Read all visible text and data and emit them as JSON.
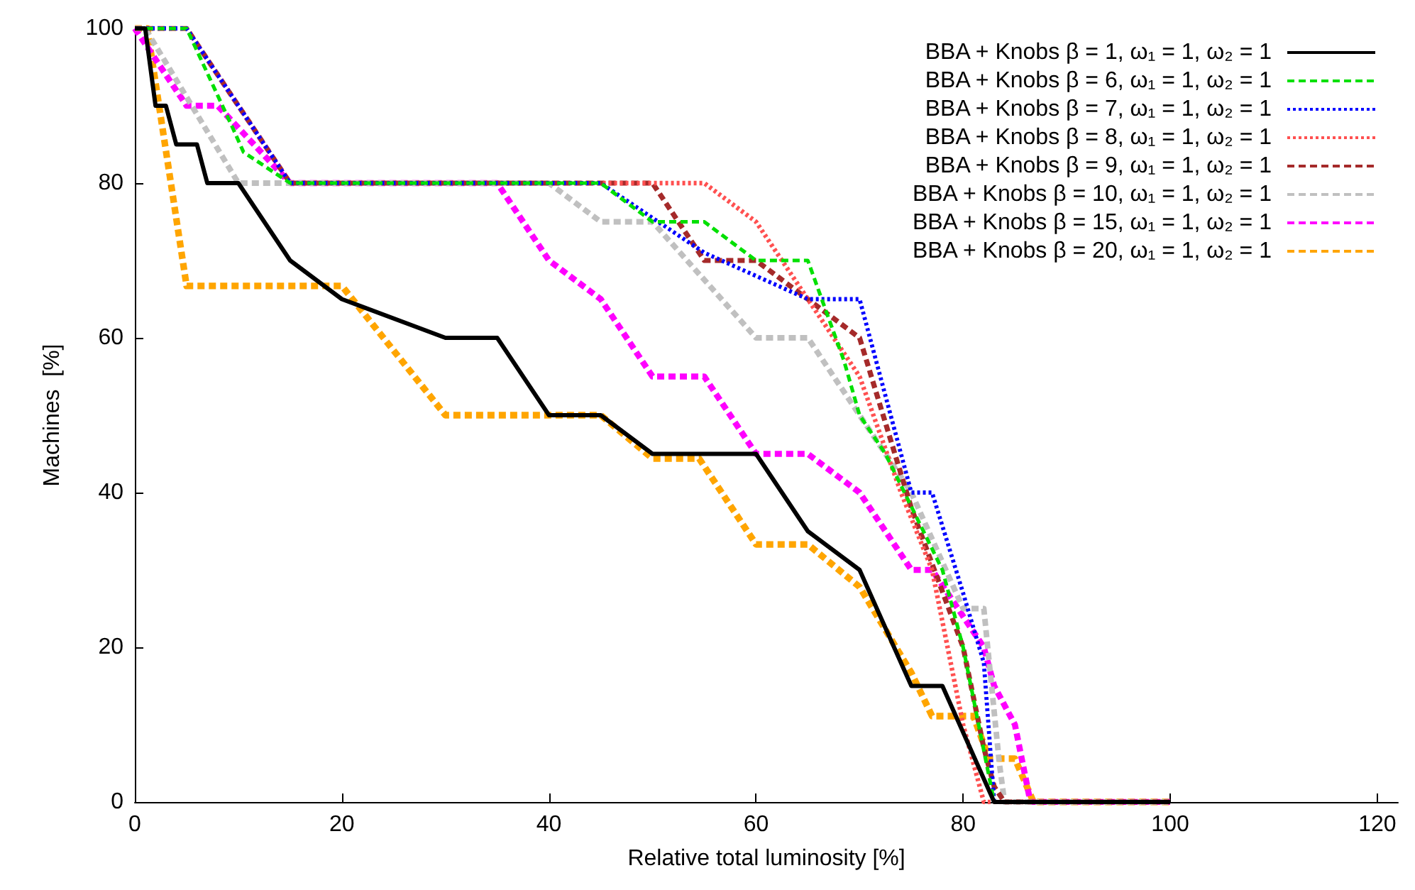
{
  "chart_data": {
    "type": "line",
    "xlabel": "Relative total luminosity [%]",
    "ylabel": "Machines  [%]",
    "xlim": [
      0,
      122
    ],
    "xticks": [
      0,
      20,
      40,
      60,
      80,
      100,
      120
    ],
    "ylim": [
      0,
      100
    ],
    "yticks": [
      0,
      20,
      40,
      60,
      80,
      100
    ],
    "grid": false,
    "legend": "top right",
    "marker": "none",
    "series": [
      {
        "name": "BBA + Knobs β = 1, ω₁ = 1, ω₂ = 1",
        "color": "#000000",
        "line_style": "solid",
        "x": [
          0,
          1,
          2,
          3,
          4,
          6,
          7,
          10,
          15,
          20,
          30,
          35,
          40,
          45,
          50,
          60,
          65,
          70,
          75,
          78,
          83,
          100
        ],
        "values": [
          100,
          100,
          90,
          90,
          85,
          85,
          80,
          80,
          70,
          65,
          60,
          60,
          50,
          50,
          45,
          45,
          35,
          30,
          15,
          15,
          0,
          0
        ]
      },
      {
        "name": "BBA + Knobs β = 6, ω₁ = 1, ω₂ = 1",
        "color": "#00e000",
        "line_style": "dashed",
        "x": [
          0,
          5,
          9.5,
          10.5,
          15,
          45,
          50,
          55,
          60,
          65,
          68.5,
          70,
          72.5,
          78,
          80,
          83,
          100
        ],
        "values": [
          100,
          100,
          87,
          84,
          80,
          80,
          75,
          75,
          70,
          70,
          57,
          50,
          45,
          30,
          20,
          0,
          0
        ]
      },
      {
        "name": "BBA + Knobs β = 7, ω₁ = 1, ω₂ = 1",
        "color": "#0000ff",
        "line_style": "dotted",
        "x": [
          0,
          5,
          15,
          45,
          55,
          65,
          70,
          75,
          77,
          80,
          82,
          83,
          100
        ],
        "values": [
          100,
          100,
          80,
          80,
          71,
          65,
          65,
          40,
          40,
          27,
          18,
          0,
          0
        ]
      },
      {
        "name": "BBA + Knobs β = 8, ω₁ = 1, ω₂ = 1",
        "color": "#ff5050",
        "line_style": "dotted",
        "x": [
          0,
          5,
          15,
          55,
          60,
          65,
          70,
          74,
          77,
          80,
          82,
          100
        ],
        "values": [
          100,
          100,
          80,
          80,
          75,
          65,
          55,
          40,
          30,
          10,
          0,
          0
        ]
      },
      {
        "name": "BBA + Knobs β = 9, ω₁ = 1, ω₂ = 1",
        "color": "#a52a2a",
        "line_style": "dashed",
        "x": [
          0,
          5,
          15,
          50,
          55,
          60,
          70,
          75,
          80,
          82,
          83,
          84,
          100
        ],
        "values": [
          100,
          100,
          80,
          80,
          70,
          70,
          60,
          38,
          20,
          7,
          2,
          0,
          0
        ]
      },
      {
        "name": "BBA + Knobs β = 10, ω₁ = 1, ω₂ = 1",
        "color": "#c0c0c0",
        "line_style": "dashed",
        "x": [
          0,
          1,
          10,
          40,
          45,
          50,
          60,
          65,
          70,
          75,
          80,
          82,
          83.5,
          84,
          100
        ],
        "values": [
          100,
          100,
          80,
          80,
          75,
          75,
          60,
          60,
          50,
          40,
          25,
          25,
          5,
          0,
          0
        ]
      },
      {
        "name": "BBA + Knobs β = 15, ω₁ = 1, ω₂ = 1",
        "color": "#ff00ff",
        "line_style": "dashed",
        "x": [
          0,
          5,
          8,
          15,
          35,
          40,
          45,
          50,
          55,
          60,
          65,
          70,
          75,
          77,
          82,
          83,
          85,
          86.5,
          100
        ],
        "values": [
          100,
          90,
          90,
          80,
          80,
          70,
          65,
          55,
          55,
          45,
          45,
          40,
          30,
          30,
          20,
          15,
          10,
          0,
          0
        ]
      },
      {
        "name": "BBA + Knobs β = 20, ω₁ = 1, ω₂ = 1",
        "color": "#ffa500",
        "line_style": "dashed",
        "x": [
          0,
          1.2,
          5,
          20,
          30,
          45,
          50,
          54.5,
          60,
          65,
          70,
          75,
          77,
          81,
          82.5,
          85,
          86.8,
          100
        ],
        "values": [
          100,
          100,
          66.7,
          66.7,
          50,
          50,
          44.4,
          44.4,
          33.3,
          33.3,
          27.8,
          16.7,
          11.1,
          11.1,
          5.6,
          5.6,
          0,
          0
        ]
      }
    ]
  }
}
